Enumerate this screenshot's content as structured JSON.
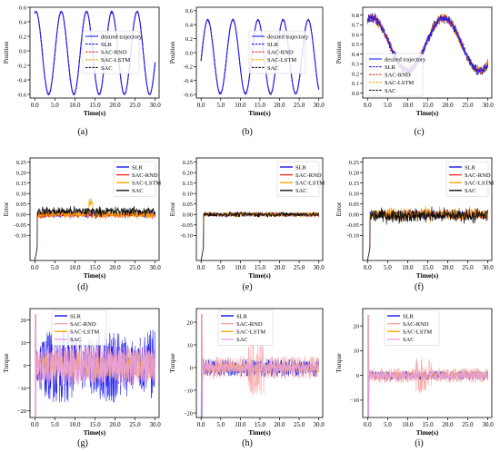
{
  "figure": {
    "panel_letters": [
      "(a)",
      "(b)",
      "(c)",
      "(d)",
      "(e)",
      "(f)",
      "(g)",
      "(h)",
      "(i)"
    ]
  },
  "colors": {
    "desired": "#1f1fff",
    "SLR": "#1515ee",
    "SAC-RND": "#ee3322",
    "SAC-LSTM": "#ffa500",
    "SAC": "#111111",
    "SAC_torque": "#e8a0e8",
    "SAC-RND_torque": "#f4a0a0"
  },
  "chart_data": [
    {
      "panel": "(a)",
      "type": "line",
      "xlabel": "Time(s)",
      "ylabel": "Position",
      "xlim": [
        -1.2,
        31
      ],
      "ylim": [
        -0.65,
        0.6
      ],
      "xticks": [
        0.0,
        5.0,
        10.0,
        15.0,
        20.0,
        25.0,
        30.0
      ],
      "xtick_labels": [
        "0.0",
        "5.0",
        "10.0",
        "15.0",
        "20.0",
        "25.0",
        "30.0"
      ],
      "yticks": [
        -0.6,
        -0.4,
        -0.2,
        0.0,
        0.2,
        0.4,
        0.6
      ],
      "ytick_labels": [
        "-0.6",
        "-0.4",
        "-0.2",
        "0.0",
        "0.2",
        "0.4",
        "0.6"
      ],
      "legend_position": "center-right",
      "series": [
        {
          "name": "desired trajectory",
          "style": "solid"
        },
        {
          "name": "SLR",
          "style": "dashed"
        },
        {
          "name": "SAC-RND",
          "style": "dashed"
        },
        {
          "name": "SAC-LSTM",
          "style": "dashed"
        },
        {
          "name": "SAC",
          "style": "dashed"
        }
      ],
      "waveform": {
        "kind": "sine",
        "offset": -0.03,
        "amplitude": 0.57,
        "period": 6.3,
        "phase_peak": 0.3,
        "noise": 0.01
      }
    },
    {
      "panel": "(b)",
      "type": "line",
      "xlabel": "Time(s)",
      "ylabel": "Position",
      "xlim": [
        -1.2,
        31
      ],
      "ylim": [
        -0.65,
        0.65
      ],
      "xticks": [
        0.0,
        5.0,
        10.0,
        15.0,
        20.0,
        25.0,
        30.0
      ],
      "xtick_labels": [
        "0.0",
        "5.0",
        "10.0",
        "15.0",
        "20.0",
        "25.0",
        "30.0"
      ],
      "yticks": [
        -0.6,
        -0.4,
        -0.2,
        0.0,
        0.2,
        0.4,
        0.6
      ],
      "ytick_labels": [
        "-0.6",
        "-0.4",
        "-0.2",
        "0.0",
        "0.2",
        "0.4",
        "0.6"
      ],
      "legend_position": "center-right",
      "series": [
        {
          "name": "desired trajectory",
          "style": "solid"
        },
        {
          "name": "SLR",
          "style": "dashed"
        },
        {
          "name": "SAC-RND",
          "style": "dashed"
        },
        {
          "name": "SAC-LSTM",
          "style": "dashed"
        },
        {
          "name": "SAC",
          "style": "dashed"
        }
      ],
      "waveform": {
        "kind": "sine",
        "offset": -0.06,
        "amplitude": 0.53,
        "period": 6.4,
        "phase_peak": 1.7,
        "noise": 0.01
      }
    },
    {
      "panel": "(c)",
      "type": "line",
      "xlabel": "Time(s)",
      "ylabel": "Position",
      "xlim": [
        -1.2,
        31
      ],
      "ylim": [
        -0.05,
        0.88
      ],
      "xticks": [
        0.0,
        5.0,
        10.0,
        15.0,
        20.0,
        25.0,
        30.0
      ],
      "xtick_labels": [
        "0.0",
        "5.0",
        "10.0",
        "15.0",
        "20.0",
        "25.0",
        "30.0"
      ],
      "yticks": [
        0.0,
        0.1,
        0.2,
        0.3,
        0.4,
        0.5,
        0.6,
        0.7,
        0.8
      ],
      "ytick_labels": [
        "0.0",
        "0.1",
        "0.2",
        "0.3",
        "0.4",
        "0.5",
        "0.6",
        "0.7",
        "0.8"
      ],
      "legend_position": "lower-left",
      "series": [
        {
          "name": "desired trajectory",
          "style": "solid"
        },
        {
          "name": "SLR",
          "style": "dashed"
        },
        {
          "name": "SAC-RND",
          "style": "dashed"
        },
        {
          "name": "SAC-LSTM",
          "style": "dashed"
        },
        {
          "name": "SAC",
          "style": "dashed"
        }
      ],
      "waveform": {
        "kind": "sine",
        "offset": 0.5,
        "amplitude": 0.27,
        "period": 18,
        "phase_peak": 1.0,
        "noise": 0.04
      }
    },
    {
      "panel": "(d)",
      "type": "line",
      "xlabel": "Time(s)",
      "ylabel": "Error",
      "xlim": [
        -1.2,
        31
      ],
      "ylim": [
        -0.22,
        0.27
      ],
      "xticks": [
        0.0,
        5.0,
        10.0,
        15.0,
        20.0,
        25.0,
        30.0
      ],
      "xtick_labels": [
        "0.0",
        "5.0",
        "10.0",
        "15.0",
        "20.0",
        "25.0",
        "30.0"
      ],
      "yticks": [
        -0.1,
        -0.05,
        0.0,
        0.05,
        0.1,
        0.15,
        0.2,
        0.25
      ],
      "ytick_labels": [
        "-0.10",
        "-0.05",
        "0.00",
        "0.05",
        "0.10",
        "0.15",
        "0.20",
        "0.25"
      ],
      "legend_position": "upper-right",
      "series": [
        {
          "name": "SLR",
          "noise": 0.012,
          "bias": 0.0
        },
        {
          "name": "SAC-RND",
          "noise": 0.014,
          "bias": 0.0
        },
        {
          "name": "SAC-LSTM",
          "noise": 0.016,
          "bias": 0.0
        },
        {
          "name": "SAC",
          "noise": 0.018,
          "bias": 0.015
        }
      ],
      "annotations": "initial transient to -0.22 at t=0; spike to 0.09 near t=14"
    },
    {
      "panel": "(e)",
      "type": "line",
      "xlabel": "Time(s)",
      "ylabel": "Error",
      "xlim": [
        -1.2,
        31
      ],
      "ylim": [
        -0.22,
        0.27
      ],
      "xticks": [
        0.0,
        5.0,
        10.0,
        15.0,
        20.0,
        25.0,
        30.0
      ],
      "xtick_labels": [
        "0.0",
        "5.0",
        "10.0",
        "15.0",
        "20.0",
        "25.0",
        "30.0"
      ],
      "yticks": [
        -0.1,
        -0.05,
        0.0,
        0.05,
        0.1,
        0.15,
        0.2,
        0.25
      ],
      "ytick_labels": [
        "-0.10",
        "-0.05",
        "0.00",
        "0.05",
        "0.10",
        "0.15",
        "0.20",
        "0.25"
      ],
      "legend_position": "upper-right",
      "series": [
        {
          "name": "SLR",
          "noise": 0.008,
          "bias": 0.0
        },
        {
          "name": "SAC-RND",
          "noise": 0.009,
          "bias": 0.0
        },
        {
          "name": "SAC-LSTM",
          "noise": 0.009,
          "bias": 0.0
        },
        {
          "name": "SAC",
          "noise": 0.01,
          "bias": 0.0
        }
      ],
      "annotations": "initial transient to -0.22 at t=0"
    },
    {
      "panel": "(f)",
      "type": "line",
      "xlabel": "Time(s)",
      "ylabel": "Error",
      "xlim": [
        -1.2,
        31
      ],
      "ylim": [
        -0.22,
        0.27
      ],
      "xticks": [
        0.0,
        5.0,
        10.0,
        15.0,
        20.0,
        25.0,
        30.0
      ],
      "xtick_labels": [
        "0.0",
        "5.0",
        "10.0",
        "15.0",
        "20.0",
        "25.0",
        "30.0"
      ],
      "yticks": [
        -0.1,
        -0.05,
        0.0,
        0.05,
        0.1,
        0.15,
        0.2,
        0.25
      ],
      "ytick_labels": [
        "-0.10",
        "-0.05",
        "0.00",
        "0.05",
        "0.10",
        "0.15",
        "0.20",
        "0.25"
      ],
      "legend_position": "upper-right",
      "series": [
        {
          "name": "SLR",
          "noise": 0.018,
          "bias": 0.0
        },
        {
          "name": "SAC-RND",
          "noise": 0.02,
          "bias": 0.0
        },
        {
          "name": "SAC-LSTM",
          "noise": 0.025,
          "bias": 0.0
        },
        {
          "name": "SAC",
          "noise": 0.028,
          "bias": -0.005
        }
      ],
      "annotations": "initial transient to -0.08 at t=0"
    },
    {
      "panel": "(g)",
      "type": "line",
      "xlabel": "Time(s)",
      "ylabel": "Torque",
      "xlim": [
        -1.2,
        31
      ],
      "ylim": [
        -23,
        25
      ],
      "xticks": [
        0.0,
        5.0,
        10.0,
        15.0,
        20.0,
        25.0,
        30.0
      ],
      "xtick_labels": [
        "0.0",
        "5.0",
        "10.0",
        "15.0",
        "20.0",
        "25.0",
        "30.0"
      ],
      "yticks": [
        -20,
        -10,
        0,
        10,
        20
      ],
      "ytick_labels": [
        "−20",
        "−10",
        "0",
        "10",
        "20"
      ],
      "legend_position": "top-center",
      "series": [
        {
          "name": "SLR",
          "amplitude": 13
        },
        {
          "name": "SAC-RND",
          "amplitude": 8
        },
        {
          "name": "SAC-LSTM",
          "amplitude": 6
        },
        {
          "name": "SAC",
          "amplitude": 9
        }
      ]
    },
    {
      "panel": "(h)",
      "type": "line",
      "xlabel": "Time(s)",
      "ylabel": "Torque",
      "xlim": [
        -1.2,
        31
      ],
      "ylim": [
        -22,
        26
      ],
      "xticks": [
        0.0,
        5.0,
        10.0,
        15.0,
        20.0,
        25.0,
        30.0
      ],
      "xtick_labels": [
        "0.0",
        "5.0",
        "10.0",
        "15.0",
        "20.0",
        "25.0",
        "30.0"
      ],
      "yticks": [
        -20,
        -10,
        0,
        10,
        20
      ],
      "ytick_labels": [
        "−20",
        "−10",
        "0",
        "10",
        "20"
      ],
      "legend_position": "top-center",
      "series": [
        {
          "name": "SLR",
          "amplitude": 4
        },
        {
          "name": "SAC-RND",
          "amplitude": 5
        },
        {
          "name": "SAC-LSTM",
          "amplitude": 2
        },
        {
          "name": "SAC",
          "amplitude": 2
        }
      ]
    },
    {
      "panel": "(i)",
      "type": "line",
      "xlabel": "Time(s)",
      "ylabel": "Torque",
      "xlim": [
        -1.2,
        31
      ],
      "ylim": [
        -17,
        27
      ],
      "xticks": [
        0.0,
        5.0,
        10.0,
        15.0,
        20.0,
        25.0,
        30.0
      ],
      "xtick_labels": [
        "0.0",
        "5.0",
        "10.0",
        "15.0",
        "20.0",
        "25.0",
        "30.0"
      ],
      "yticks": [
        -10,
        0,
        10,
        20
      ],
      "ytick_labels": [
        "−10",
        "0",
        "10",
        "20"
      ],
      "legend_position": "top-center",
      "series": [
        {
          "name": "SLR",
          "amplitude": 1.8
        },
        {
          "name": "SAC-RND",
          "amplitude": 3
        },
        {
          "name": "SAC-LSTM",
          "amplitude": 1.5
        },
        {
          "name": "SAC",
          "amplitude": 1.5
        }
      ]
    }
  ]
}
